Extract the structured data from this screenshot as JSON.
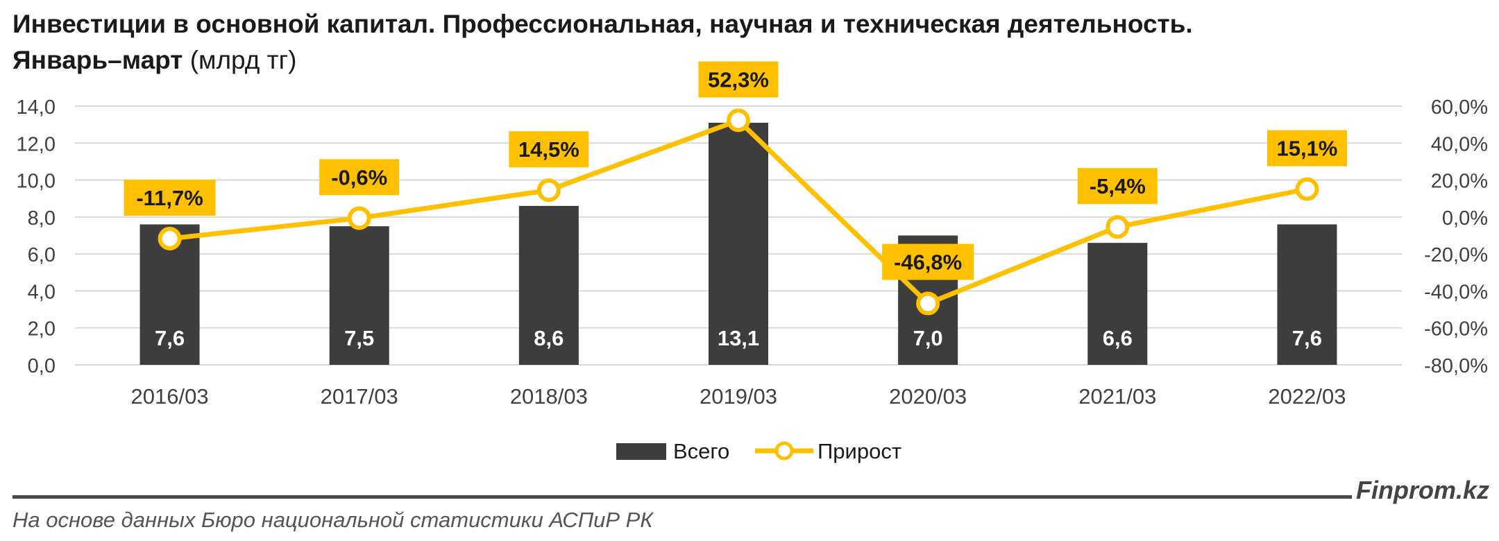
{
  "header": {
    "title": "Инвестиции в основной капитал. Профессиональная, научная и техническая деятельность.",
    "subtitle_bold": "Январь–март",
    "subtitle_unit": "(млрд тг)"
  },
  "footer": {
    "brand": "Finprom.kz",
    "source": "На основе данных Бюро национальной статистики АСПиР РК"
  },
  "colors": {
    "bar": "#3d3d3d",
    "line": "#ffc000",
    "label_bg": "#ffc000",
    "grid": "#d9d9d9"
  },
  "chart_data": {
    "type": "bar+line",
    "categories": [
      "2016/03",
      "2017/03",
      "2018/03",
      "2019/03",
      "2020/03",
      "2021/03",
      "2022/03"
    ],
    "series": [
      {
        "name": "Всего",
        "type": "bar",
        "axis": "left",
        "values": [
          7.6,
          7.5,
          8.6,
          13.1,
          7.0,
          6.6,
          7.6
        ],
        "labels": [
          "7,6",
          "7,5",
          "8,6",
          "13,1",
          "7,0",
          "6,6",
          "7,6"
        ]
      },
      {
        "name": "Прирост",
        "type": "line",
        "axis": "right",
        "values": [
          -11.7,
          -0.6,
          14.5,
          52.3,
          -46.8,
          -5.4,
          15.1
        ],
        "labels": [
          "-11,7%",
          "-0,6%",
          "14,5%",
          "52,3%",
          "-46,8%",
          "-5,4%",
          "15,1%"
        ]
      }
    ],
    "y_left": {
      "min": 0,
      "max": 14,
      "step": 2,
      "ticks": [
        "0,0",
        "2,0",
        "4,0",
        "6,0",
        "8,0",
        "10,0",
        "12,0",
        "14,0"
      ]
    },
    "y_right": {
      "min": -80,
      "max": 60,
      "step": 20,
      "ticks": [
        "-80,0%",
        "-60,0%",
        "-40,0%",
        "-20,0%",
        "0,0%",
        "20,0%",
        "40,0%",
        "60,0%"
      ]
    },
    "grid": true,
    "legend": "bottom-center"
  }
}
